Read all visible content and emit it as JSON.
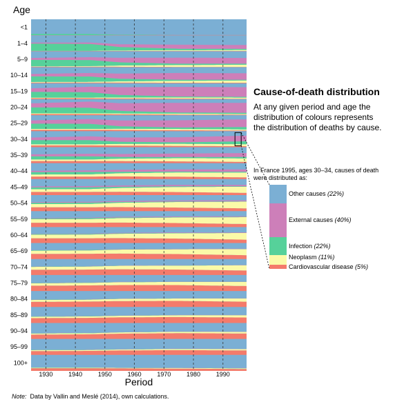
{
  "colors": {
    "other": "#7bafd4",
    "external": "#cd7fb9",
    "infection": "#56d19a",
    "neoplasm": "#fbfaa8",
    "cardiovascular": "#f47b6b"
  },
  "chart_data": {
    "type": "area",
    "subtype": "stacked area small multiples by age group",
    "ylabel": "Age",
    "xlabel": "Period",
    "x_range": [
      1925,
      1998
    ],
    "x_ticks": [
      1930,
      1940,
      1950,
      1960,
      1970,
      1980,
      1990
    ],
    "grid": "dashed vertical lines at each decade",
    "stack_order_bottom_to_top": [
      "Cardiovascular disease",
      "Neoplasm",
      "Infection",
      "External causes",
      "Other causes"
    ],
    "age_groups": [
      {
        "label": "100+",
        "years": [
          1925,
          1945,
          1955,
          1975,
          1998
        ],
        "cardio": [
          0.17,
          0.17,
          0.16,
          0.14,
          0.12
        ],
        "neo": [
          0.03,
          0.03,
          0.03,
          0.04,
          0.04
        ],
        "inf": [
          0.02,
          0.02,
          0.01,
          0.01,
          0.01
        ],
        "ext": [
          0.01,
          0.01,
          0.01,
          0.01,
          0.01
        ]
      },
      {
        "label": "95–99",
        "years": [
          1925,
          1945,
          1955,
          1975,
          1998
        ],
        "cardio": [
          0.24,
          0.25,
          0.28,
          0.3,
          0.28
        ],
        "neo": [
          0.06,
          0.06,
          0.06,
          0.07,
          0.08
        ],
        "inf": [
          0.02,
          0.02,
          0.01,
          0.01,
          0.01
        ],
        "ext": [
          0.01,
          0.01,
          0.01,
          0.01,
          0.01
        ]
      },
      {
        "label": "90–94",
        "years": [
          1925,
          1945,
          1955,
          1975,
          1998
        ],
        "cardio": [
          0.27,
          0.29,
          0.33,
          0.36,
          0.34
        ],
        "neo": [
          0.07,
          0.07,
          0.08,
          0.09,
          0.1
        ],
        "inf": [
          0.02,
          0.02,
          0.01,
          0.01,
          0.01
        ],
        "ext": [
          0.01,
          0.01,
          0.01,
          0.01,
          0.01
        ]
      },
      {
        "label": "85–89",
        "years": [
          1925,
          1945,
          1955,
          1975,
          1998
        ],
        "cardio": [
          0.3,
          0.32,
          0.35,
          0.37,
          0.34
        ],
        "neo": [
          0.09,
          0.09,
          0.1,
          0.11,
          0.14
        ],
        "inf": [
          0.02,
          0.02,
          0.01,
          0.01,
          0.01
        ],
        "ext": [
          0.01,
          0.01,
          0.01,
          0.01,
          0.01
        ]
      },
      {
        "label": "80–84",
        "years": [
          1925,
          1945,
          1955,
          1975,
          1998
        ],
        "cardio": [
          0.32,
          0.34,
          0.37,
          0.38,
          0.33
        ],
        "neo": [
          0.12,
          0.12,
          0.14,
          0.15,
          0.2
        ],
        "inf": [
          0.02,
          0.02,
          0.01,
          0.01,
          0.01
        ],
        "ext": [
          0.01,
          0.01,
          0.01,
          0.01,
          0.01
        ]
      },
      {
        "label": "75–79",
        "years": [
          1925,
          1945,
          1955,
          1975,
          1998
        ],
        "cardio": [
          0.33,
          0.35,
          0.37,
          0.37,
          0.31
        ],
        "neo": [
          0.15,
          0.16,
          0.18,
          0.2,
          0.26
        ],
        "inf": [
          0.02,
          0.02,
          0.01,
          0.01,
          0.01
        ],
        "ext": [
          0.01,
          0.01,
          0.01,
          0.01,
          0.01
        ]
      },
      {
        "label": "70–74",
        "years": [
          1925,
          1945,
          1955,
          1975,
          1998
        ],
        "cardio": [
          0.33,
          0.34,
          0.36,
          0.34,
          0.28
        ],
        "neo": [
          0.18,
          0.19,
          0.22,
          0.25,
          0.33
        ],
        "inf": [
          0.02,
          0.02,
          0.01,
          0.01,
          0.01
        ],
        "ext": [
          0.01,
          0.01,
          0.01,
          0.01,
          0.01
        ]
      },
      {
        "label": "65–69",
        "years": [
          1925,
          1945,
          1955,
          1975,
          1998
        ],
        "cardio": [
          0.32,
          0.33,
          0.34,
          0.31,
          0.24
        ],
        "neo": [
          0.2,
          0.21,
          0.25,
          0.3,
          0.38
        ],
        "inf": [
          0.03,
          0.03,
          0.02,
          0.01,
          0.01
        ],
        "ext": [
          0.01,
          0.01,
          0.02,
          0.02,
          0.02
        ]
      },
      {
        "label": "60–64",
        "years": [
          1925,
          1945,
          1955,
          1975,
          1998
        ],
        "cardio": [
          0.3,
          0.3,
          0.31,
          0.28,
          0.21
        ],
        "neo": [
          0.22,
          0.23,
          0.27,
          0.33,
          0.42
        ],
        "inf": [
          0.04,
          0.04,
          0.03,
          0.02,
          0.01
        ],
        "ext": [
          0.02,
          0.02,
          0.03,
          0.03,
          0.03
        ]
      },
      {
        "label": "55–59",
        "years": [
          1925,
          1945,
          1955,
          1975,
          1998
        ],
        "cardio": [
          0.27,
          0.27,
          0.28,
          0.25,
          0.19
        ],
        "neo": [
          0.22,
          0.23,
          0.28,
          0.35,
          0.43
        ],
        "inf": [
          0.05,
          0.06,
          0.04,
          0.02,
          0.02
        ],
        "ext": [
          0.03,
          0.03,
          0.04,
          0.04,
          0.04
        ]
      },
      {
        "label": "50–54",
        "years": [
          1925,
          1945,
          1955,
          1975,
          1998
        ],
        "cardio": [
          0.24,
          0.24,
          0.25,
          0.22,
          0.17
        ],
        "neo": [
          0.2,
          0.21,
          0.27,
          0.35,
          0.42
        ],
        "inf": [
          0.08,
          0.08,
          0.05,
          0.03,
          0.02
        ],
        "ext": [
          0.04,
          0.05,
          0.06,
          0.06,
          0.06
        ]
      },
      {
        "label": "45–49",
        "years": [
          1925,
          1945,
          1955,
          1975,
          1998
        ],
        "cardio": [
          0.2,
          0.2,
          0.21,
          0.19,
          0.14
        ],
        "neo": [
          0.17,
          0.18,
          0.24,
          0.32,
          0.38
        ],
        "inf": [
          0.11,
          0.11,
          0.07,
          0.04,
          0.03
        ],
        "ext": [
          0.06,
          0.07,
          0.08,
          0.09,
          0.09
        ]
      },
      {
        "label": "40–44",
        "years": [
          1925,
          1945,
          1955,
          1975,
          1998
        ],
        "cardio": [
          0.16,
          0.16,
          0.17,
          0.15,
          0.11
        ],
        "neo": [
          0.13,
          0.14,
          0.2,
          0.27,
          0.3
        ],
        "inf": [
          0.15,
          0.15,
          0.09,
          0.05,
          0.05
        ],
        "ext": [
          0.08,
          0.1,
          0.12,
          0.14,
          0.15
        ]
      },
      {
        "label": "35–39",
        "years": [
          1925,
          1945,
          1955,
          1975,
          1998
        ],
        "cardio": [
          0.13,
          0.13,
          0.13,
          0.11,
          0.08
        ],
        "neo": [
          0.1,
          0.1,
          0.15,
          0.2,
          0.22
        ],
        "inf": [
          0.2,
          0.2,
          0.11,
          0.07,
          0.09
        ],
        "ext": [
          0.12,
          0.16,
          0.18,
          0.22,
          0.24
        ]
      },
      {
        "label": "30–34",
        "years": [
          1925,
          1945,
          1955,
          1975,
          1998
        ],
        "cardio": [
          0.11,
          0.11,
          0.1,
          0.08,
          0.06
        ],
        "neo": [
          0.07,
          0.07,
          0.1,
          0.13,
          0.12
        ],
        "inf": [
          0.26,
          0.26,
          0.14,
          0.09,
          0.19
        ],
        "ext": [
          0.16,
          0.24,
          0.26,
          0.32,
          0.35
        ]
      },
      {
        "label": "25–29",
        "years": [
          1925,
          1945,
          1955,
          1975,
          1998
        ],
        "cardio": [
          0.09,
          0.09,
          0.08,
          0.06,
          0.04
        ],
        "neo": [
          0.05,
          0.05,
          0.07,
          0.08,
          0.07
        ],
        "inf": [
          0.33,
          0.32,
          0.16,
          0.09,
          0.15
        ],
        "ext": [
          0.2,
          0.3,
          0.36,
          0.45,
          0.48
        ]
      },
      {
        "label": "20–24",
        "years": [
          1925,
          1945,
          1955,
          1975,
          1998
        ],
        "cardio": [
          0.07,
          0.07,
          0.06,
          0.04,
          0.03
        ],
        "neo": [
          0.04,
          0.04,
          0.05,
          0.06,
          0.05
        ],
        "inf": [
          0.38,
          0.36,
          0.16,
          0.07,
          0.07
        ],
        "ext": [
          0.25,
          0.38,
          0.48,
          0.6,
          0.62
        ]
      },
      {
        "label": "15–19",
        "years": [
          1925,
          1945,
          1955,
          1975,
          1998
        ],
        "cardio": [
          0.06,
          0.06,
          0.05,
          0.04,
          0.03
        ],
        "neo": [
          0.04,
          0.04,
          0.06,
          0.07,
          0.07
        ],
        "inf": [
          0.36,
          0.34,
          0.16,
          0.06,
          0.05
        ],
        "ext": [
          0.22,
          0.34,
          0.48,
          0.6,
          0.6
        ]
      },
      {
        "label": "10–14",
        "years": [
          1925,
          1945,
          1955,
          1975,
          1998
        ],
        "cardio": [
          0.04,
          0.04,
          0.04,
          0.03,
          0.03
        ],
        "neo": [
          0.04,
          0.05,
          0.08,
          0.12,
          0.14
        ],
        "inf": [
          0.35,
          0.33,
          0.16,
          0.07,
          0.05
        ],
        "ext": [
          0.15,
          0.22,
          0.32,
          0.42,
          0.4
        ]
      },
      {
        "label": "5–9",
        "years": [
          1925,
          1945,
          1955,
          1975,
          1998
        ],
        "cardio": [
          0.03,
          0.03,
          0.03,
          0.02,
          0.02
        ],
        "neo": [
          0.03,
          0.04,
          0.08,
          0.12,
          0.14
        ],
        "inf": [
          0.4,
          0.38,
          0.2,
          0.08,
          0.06
        ],
        "ext": [
          0.12,
          0.18,
          0.28,
          0.38,
          0.36
        ]
      },
      {
        "label": "1–4",
        "years": [
          1925,
          1945,
          1955,
          1975,
          1998
        ],
        "cardio": [
          0.02,
          0.02,
          0.02,
          0.02,
          0.02
        ],
        "neo": [
          0.01,
          0.01,
          0.03,
          0.05,
          0.06
        ],
        "inf": [
          0.45,
          0.43,
          0.22,
          0.09,
          0.07
        ],
        "ext": [
          0.06,
          0.09,
          0.17,
          0.25,
          0.24
        ]
      },
      {
        "label": "<1",
        "years": [
          1925,
          1945,
          1955,
          1975,
          1998
        ],
        "cardio": [
          0.01,
          0.01,
          0.01,
          0.01,
          0.01
        ],
        "neo": [
          0.0,
          0.0,
          0.0,
          0.0,
          0.0
        ],
        "inf": [
          0.08,
          0.07,
          0.03,
          0.01,
          0.01
        ],
        "ext": [
          0.0,
          0.0,
          0.01,
          0.01,
          0.01
        ]
      }
    ],
    "highlight": {
      "age": "30–34",
      "year": 1995
    }
  },
  "panel": {
    "title": "Cause-of-death distribution",
    "description": "At any given period and age the distribution of colours represents the distribution of deaths by cause."
  },
  "example": {
    "intro": "In France 1995, ages 30–34, causes of death were distributed as:",
    "items": [
      {
        "key": "other",
        "label": "Other causes",
        "pct": "(22%)",
        "value": 0.22
      },
      {
        "key": "external",
        "label": "External causes",
        "pct": "(40%)",
        "value": 0.4
      },
      {
        "key": "infection",
        "label": "Infection",
        "pct": "(22%)",
        "value": 0.22
      },
      {
        "key": "neoplasm",
        "label": "Neoplasm",
        "pct": "(11%)",
        "value": 0.11
      },
      {
        "key": "cardiovascular",
        "label": "Cardiovascular disease",
        "pct": "(5%)",
        "value": 0.05
      }
    ]
  },
  "note": {
    "label": "Note:",
    "text": "Data by Vallin and Meslé (2014), own calculations."
  }
}
